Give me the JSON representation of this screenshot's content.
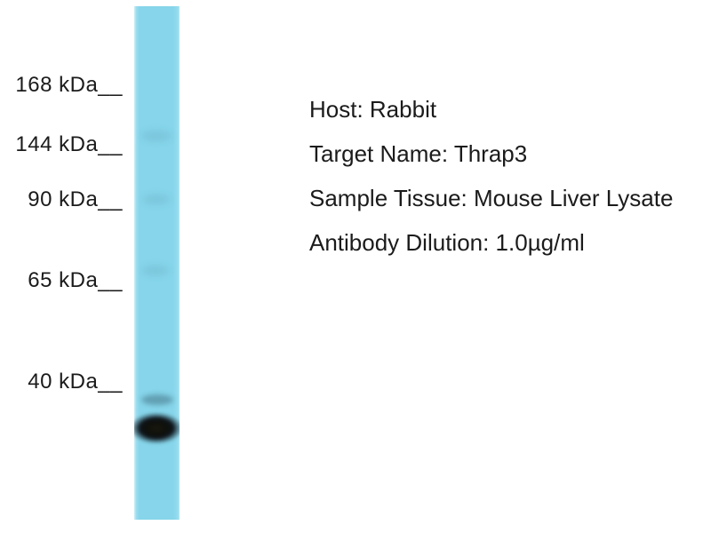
{
  "figure_type": "western-blot",
  "markers": [
    {
      "label": "168 kDa__"
    },
    {
      "label": "144 kDa__"
    },
    {
      "label": "90 kDa__"
    },
    {
      "label": "65 kDa__"
    },
    {
      "label": "40 kDa__"
    }
  ],
  "annotations": [
    {
      "label": "Host: Rabbit"
    },
    {
      "label": "Target Name: Thrap3"
    },
    {
      "label": "Sample Tissue: Mouse Liver Lysate"
    },
    {
      "label": "Antibody Dilution: 1.0µg/ml"
    }
  ],
  "colors": {
    "background": "#ffffff",
    "lane": "#86d5ea",
    "band": "#0e100c",
    "text": "#1b1b1b"
  }
}
